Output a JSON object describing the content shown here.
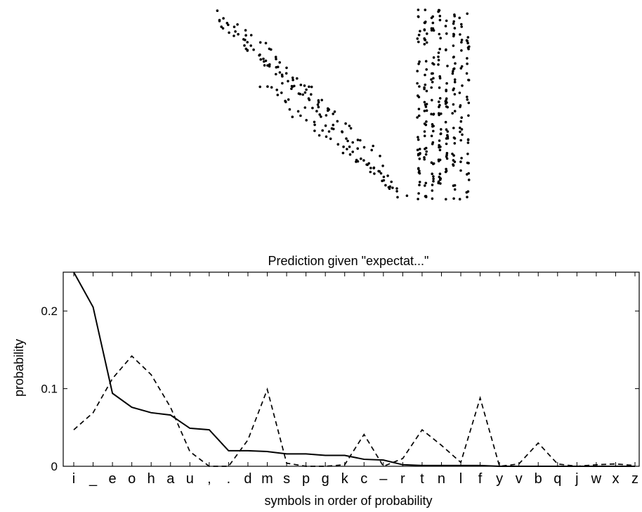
{
  "chart_data": {
    "type": "line",
    "title": "Prediction given \"expectat...\"",
    "xlabel": "symbols in order of probability",
    "ylabel": "probability",
    "categories": [
      "i",
      "_",
      "e",
      "o",
      "h",
      "a",
      "u",
      ",",
      ".",
      "d",
      "m",
      "s",
      "p",
      "g",
      "k",
      "c",
      "–",
      "r",
      "t",
      "n",
      "l",
      "f",
      "y",
      "v",
      "b",
      "q",
      "j",
      "w",
      "x",
      "z"
    ],
    "ylim": [
      0,
      0.25
    ],
    "yticks": [
      0,
      0.1,
      0.2
    ],
    "ytick_labels": [
      "0",
      "0.1",
      "0.2"
    ],
    "grid": false,
    "legend": "none",
    "series": [
      {
        "style": "solid",
        "values": [
          0.25,
          0.205,
          0.094,
          0.076,
          0.069,
          0.066,
          0.049,
          0.047,
          0.02,
          0.02,
          0.019,
          0.016,
          0.016,
          0.014,
          0.014,
          0.009,
          0.008,
          0.002,
          0.001,
          0.001,
          0.001,
          0.001,
          0.0,
          0.0,
          0.0,
          0.0,
          0.0,
          0.0,
          0.0,
          0.0
        ]
      },
      {
        "style": "dashed",
        "values": [
          0.047,
          0.069,
          0.113,
          0.142,
          0.118,
          0.076,
          0.019,
          0.0,
          0.0,
          0.034,
          0.099,
          0.004,
          0.0,
          0.0,
          0.002,
          0.041,
          0.0,
          0.01,
          0.047,
          0.027,
          0.005,
          0.088,
          0.0,
          0.003,
          0.03,
          0.003,
          0.0,
          0.002,
          0.003,
          0.001
        ]
      }
    ],
    "color": "#000000"
  },
  "hierarchy_plot": {
    "point_color": "#000000"
  }
}
